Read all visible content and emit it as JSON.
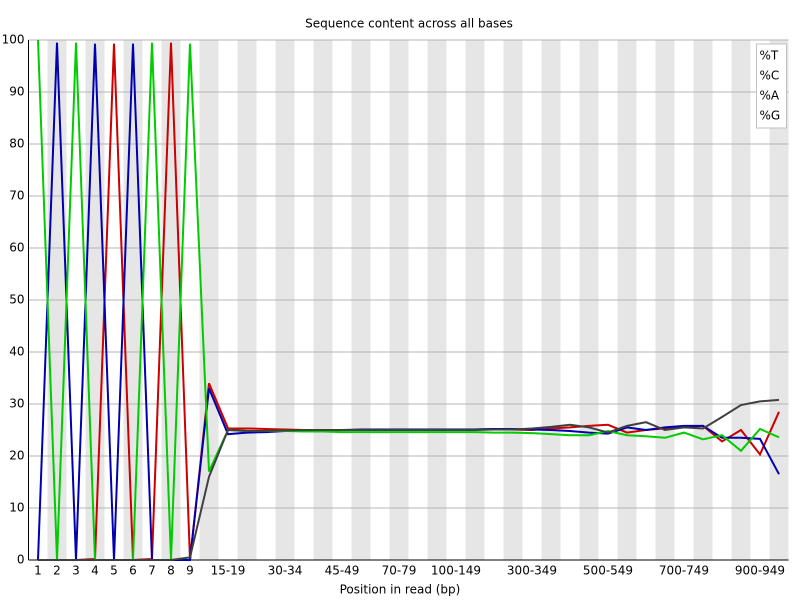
{
  "chart_data": {
    "type": "line",
    "title": "Sequence content across all bases",
    "x_label": "Position in read (bp)",
    "categories": [
      "1",
      "2",
      "3",
      "4",
      "5",
      "6",
      "7",
      "8",
      "9",
      null,
      "15-19",
      null,
      null,
      "30-34",
      null,
      null,
      "45-49",
      null,
      null,
      "70-79",
      null,
      null,
      "100-149",
      null,
      null,
      null,
      "300-349",
      null,
      null,
      null,
      "500-549",
      null,
      null,
      null,
      "700-749",
      null,
      null,
      null,
      "900-949",
      null
    ],
    "series": [
      {
        "name": "%T",
        "color": "#cc0000",
        "values": [
          0,
          0,
          0,
          0.2,
          99.3,
          0,
          0.2,
          99.5,
          0,
          34,
          25.3,
          25.3,
          25.2,
          25.1,
          25,
          25,
          25,
          25,
          25,
          25,
          25,
          25,
          25.1,
          25.1,
          25.2,
          25.1,
          25,
          25.3,
          25.5,
          25.8,
          26,
          24.5,
          25,
          25.3,
          25.5,
          25.8,
          22.8,
          25,
          20.3,
          28.5
        ]
      },
      {
        "name": "%C",
        "color": "#0000b0",
        "values": [
          0,
          99.5,
          0,
          99.3,
          0,
          99.3,
          0,
          0,
          0,
          33,
          24.2,
          24.5,
          24.6,
          24.8,
          24.9,
          25,
          25,
          25.1,
          25.1,
          25.1,
          25.1,
          25.1,
          25.1,
          25.1,
          25.2,
          25.2,
          25.1,
          25,
          24.8,
          24.5,
          24.3,
          25.5,
          25,
          25.5,
          25.8,
          25.8,
          23.5,
          23.5,
          23.3,
          16.5
        ]
      },
      {
        "name": "%A",
        "color": "#00cc00",
        "values": [
          100,
          0,
          99.5,
          0,
          0,
          0,
          99.5,
          0,
          99.3,
          17,
          25,
          24.8,
          24.8,
          24.8,
          24.7,
          24.7,
          24.6,
          24.6,
          24.6,
          24.6,
          24.6,
          24.6,
          24.6,
          24.6,
          24.5,
          24.5,
          24.4,
          24.2,
          24,
          24,
          24.8,
          24,
          23.8,
          23.5,
          24.5,
          23.2,
          24,
          21,
          25.2,
          23.6
        ]
      },
      {
        "name": "%G",
        "color": "#404040",
        "values": [
          0,
          0,
          0,
          0,
          0,
          0,
          0,
          0,
          0.5,
          16,
          25,
          24.8,
          24.8,
          24.9,
          25,
          25,
          25,
          25,
          25,
          25,
          25,
          25,
          25,
          25,
          25.1,
          25.1,
          25.3,
          25.6,
          26,
          25.5,
          24.5,
          25.8,
          26.5,
          25,
          25.5,
          25.3,
          27.5,
          29.8,
          30.5,
          30.8
        ]
      }
    ],
    "ylim": [
      0,
      100
    ],
    "yticks": [
      0,
      10,
      20,
      30,
      40,
      50,
      60,
      70,
      80,
      90,
      100
    ],
    "grid": true,
    "legend": "top-right"
  }
}
